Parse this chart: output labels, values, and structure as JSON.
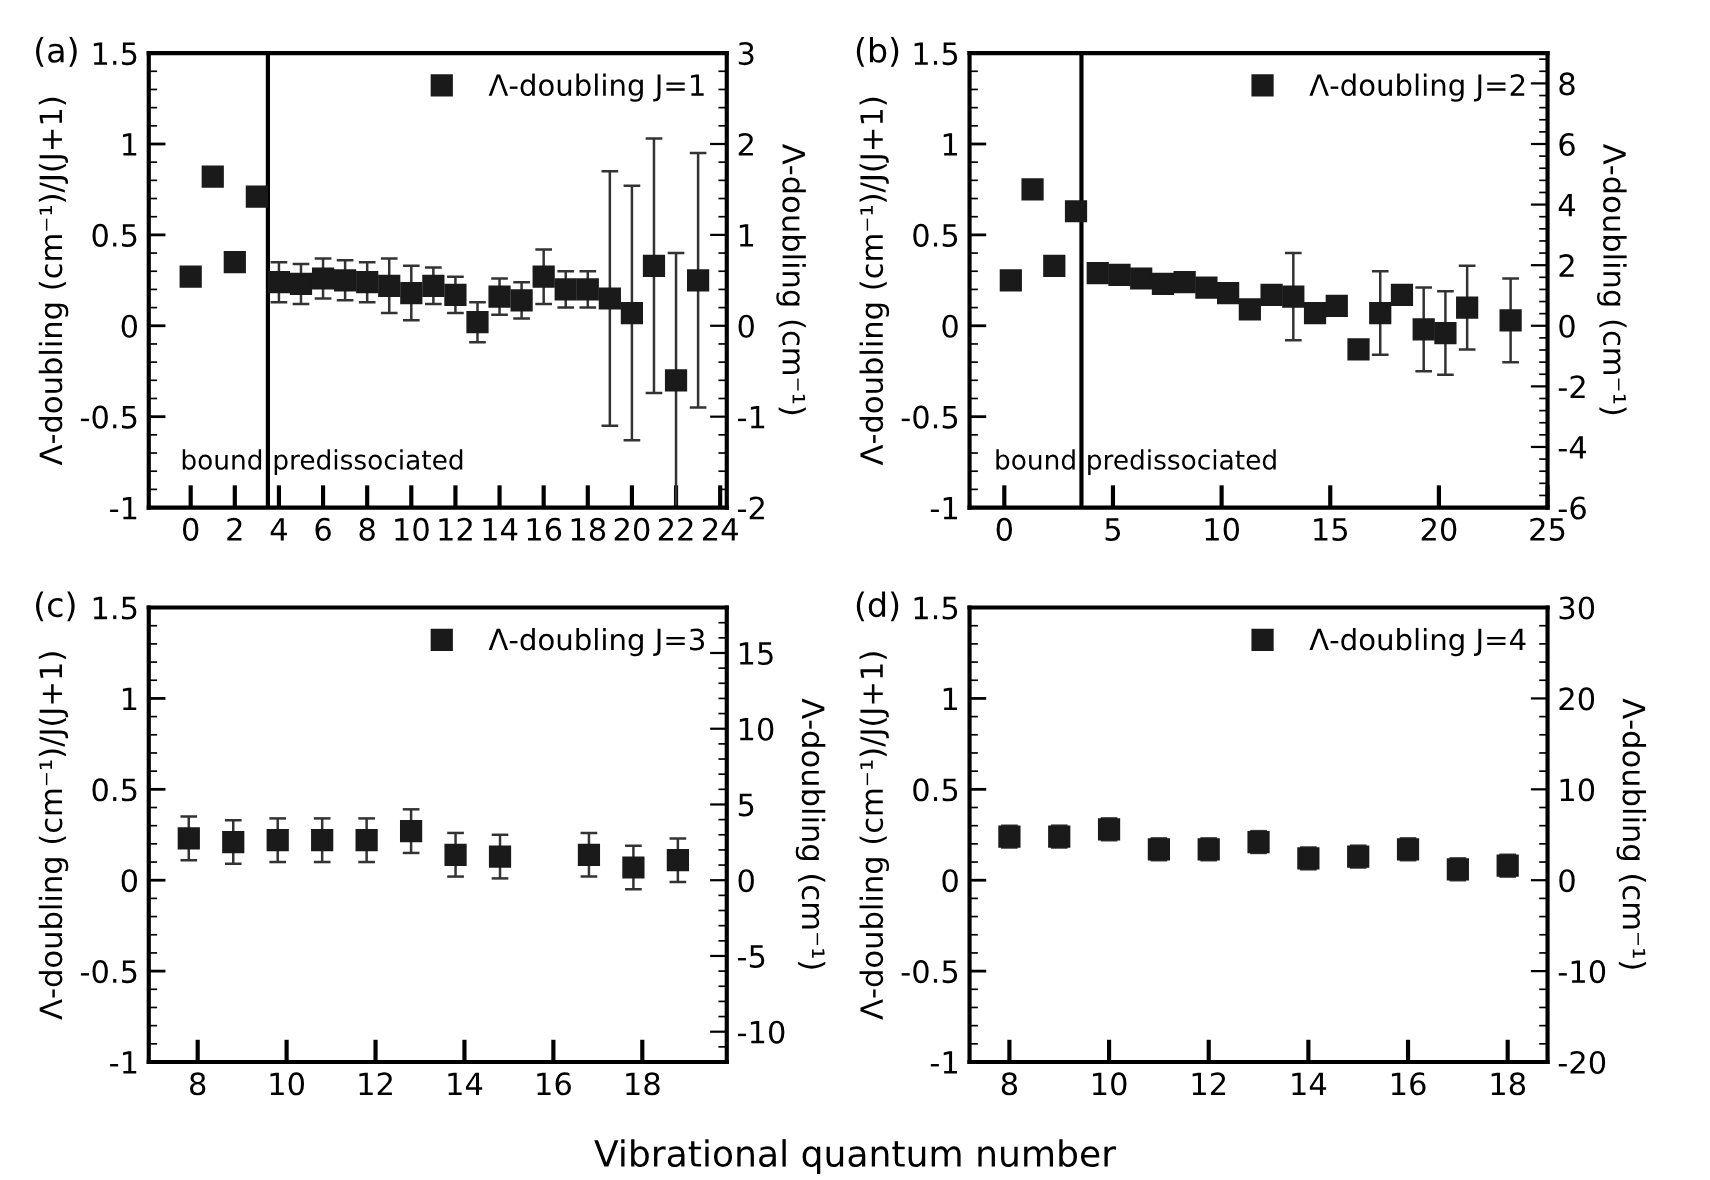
{
  "chart_data": [
    {
      "type": "scatter",
      "title": "(a)",
      "ylabel": "Λ-doubling (cm⁻¹)/J(J+1)",
      "y2label": "Λ-doubling (cm⁻¹)",
      "marker": "square",
      "legend": "top right",
      "grid": false,
      "xlim": [
        -1.9,
        24.3
      ],
      "xticks": [
        0,
        2,
        4,
        6,
        8,
        10,
        12,
        14,
        16,
        18,
        20,
        22,
        24
      ],
      "ylim": [
        -1,
        1.5
      ],
      "yticks": [
        -1,
        -0.5,
        0,
        0.5,
        1,
        1.5
      ],
      "y2lim": [
        -2,
        3
      ],
      "y2ticks": [
        -2,
        -1,
        0,
        1,
        2,
        3
      ],
      "ref_lines": [
        {
          "axis": "x",
          "value": 3.5,
          "color": "#000000"
        }
      ],
      "annotations": [
        "bound",
        "predissociated"
      ],
      "series": [
        {
          "name": "Λ-doubling J=1",
          "color": "#1a1a1a",
          "x": [
            0,
            1,
            2,
            3,
            4,
            5,
            6,
            7,
            8,
            9,
            10,
            11,
            12,
            13,
            14,
            15,
            16,
            17,
            18,
            19,
            20,
            21,
            22,
            23
          ],
          "values": [
            0.27,
            0.82,
            0.35,
            0.71,
            0.24,
            0.23,
            0.26,
            0.25,
            0.24,
            0.22,
            0.18,
            0.22,
            0.17,
            0.02,
            0.16,
            0.14,
            0.27,
            0.2,
            0.2,
            0.15,
            0.07,
            0.33,
            -0.3,
            0.25
          ],
          "errors": [
            null,
            null,
            null,
            null,
            0.11,
            0.11,
            0.11,
            0.11,
            0.11,
            0.15,
            0.15,
            0.1,
            0.1,
            0.11,
            0.1,
            0.1,
            0.15,
            0.1,
            0.1,
            0.7,
            0.7,
            0.7,
            0.7,
            0.7
          ]
        }
      ]
    },
    {
      "type": "scatter",
      "title": "(b)",
      "ylabel": "Λ-doubling (cm⁻¹)/J(J+1)",
      "y2label": "Λ-doubling (cm⁻¹)",
      "marker": "square",
      "legend": "top right",
      "grid": false,
      "xlim": [
        -1.6,
        25
      ],
      "xticks": [
        0,
        5,
        10,
        15,
        20,
        25
      ],
      "ylim": [
        -1,
        1.5
      ],
      "yticks": [
        -1,
        -0.5,
        0,
        0.5,
        1,
        1.5
      ],
      "y2lim": [
        -6,
        9
      ],
      "y2ticks": [
        -6,
        -4,
        -2,
        0,
        2,
        4,
        6,
        8
      ],
      "ref_lines": [
        {
          "axis": "x",
          "value": 3.55,
          "color": "#000000"
        }
      ],
      "annotations": [
        "bound",
        "predissociated"
      ],
      "series": [
        {
          "name": "Λ-doubling J=2",
          "color": "#1a1a1a",
          "x": [
            0.3,
            1.3,
            2.3,
            3.3,
            4.3,
            5.3,
            6.3,
            7.3,
            8.3,
            9.3,
            10.3,
            11.3,
            12.3,
            13.3,
            14.3,
            15.3,
            16.3,
            17.3,
            18.3,
            19.3,
            20.3,
            21.3,
            23.3
          ],
          "values": [
            0.25,
            0.75,
            0.33,
            0.63,
            0.29,
            0.28,
            0.26,
            0.23,
            0.24,
            0.21,
            0.18,
            0.09,
            0.17,
            0.16,
            0.07,
            0.11,
            -0.13,
            0.07,
            0.17,
            -0.02,
            -0.04,
            0.1,
            0.03
          ],
          "errors": [
            null,
            null,
            null,
            null,
            null,
            null,
            null,
            null,
            null,
            null,
            null,
            0.04,
            null,
            0.24,
            0.05,
            null,
            null,
            0.23,
            0.04,
            0.23,
            0.23,
            0.23,
            0.23
          ]
        }
      ]
    },
    {
      "type": "scatter",
      "title": "(c)",
      "ylabel": "Λ-doubling (cm⁻¹)/J(J+1)",
      "y2label": "Λ-doubling (cm⁻¹)",
      "xlabel": "Vibrational quantum number",
      "marker": "square",
      "legend": "top right",
      "grid": false,
      "xlim": [
        6.9,
        19.9
      ],
      "xticks": [
        8,
        10,
        12,
        14,
        16,
        18
      ],
      "ylim": [
        -1,
        1.5
      ],
      "yticks": [
        -1,
        -0.5,
        0,
        0.5,
        1,
        1.5
      ],
      "y2lim": [
        -12,
        18
      ],
      "y2ticks": [
        -10,
        -5,
        0,
        5,
        10,
        15
      ],
      "series": [
        {
          "name": "Λ-doubling J=3",
          "color": "#1a1a1a",
          "x": [
            7.8,
            8.8,
            9.8,
            10.8,
            11.8,
            12.8,
            13.8,
            14.8,
            16.8,
            17.8,
            18.8
          ],
          "values": [
            0.23,
            0.21,
            0.22,
            0.22,
            0.22,
            0.27,
            0.14,
            0.13,
            0.14,
            0.07,
            0.11
          ],
          "errors": [
            0.12,
            0.12,
            0.12,
            0.12,
            0.12,
            0.12,
            0.12,
            0.12,
            0.12,
            0.12,
            0.12
          ]
        }
      ]
    },
    {
      "type": "scatter",
      "title": "(d)",
      "ylabel": "Λ-doubling (cm⁻¹)/J(J+1)",
      "y2label": "Λ-doubling (cm⁻¹)",
      "marker": "square",
      "legend": "top right",
      "grid": false,
      "xlim": [
        7.2,
        18.8
      ],
      "xticks": [
        8,
        10,
        12,
        14,
        16,
        18
      ],
      "ylim": [
        -1,
        1.5
      ],
      "yticks": [
        -1,
        -0.5,
        0,
        0.5,
        1,
        1.5
      ],
      "y2lim": [
        -20,
        30
      ],
      "y2ticks": [
        -20,
        -10,
        0,
        10,
        20,
        30
      ],
      "series": [
        {
          "name": "Λ-doubling J=4",
          "color": "#1a1a1a",
          "x": [
            8,
            9,
            10,
            11,
            12,
            13,
            14,
            15,
            16,
            17,
            18
          ],
          "values": [
            0.24,
            0.24,
            0.28,
            0.17,
            0.17,
            0.21,
            0.12,
            0.13,
            0.17,
            0.06,
            0.08
          ],
          "errors": [
            0.06,
            0.06,
            0.06,
            0.06,
            0.06,
            0.06,
            0.06,
            0.06,
            0.06,
            0.06,
            0.06
          ]
        }
      ]
    }
  ]
}
